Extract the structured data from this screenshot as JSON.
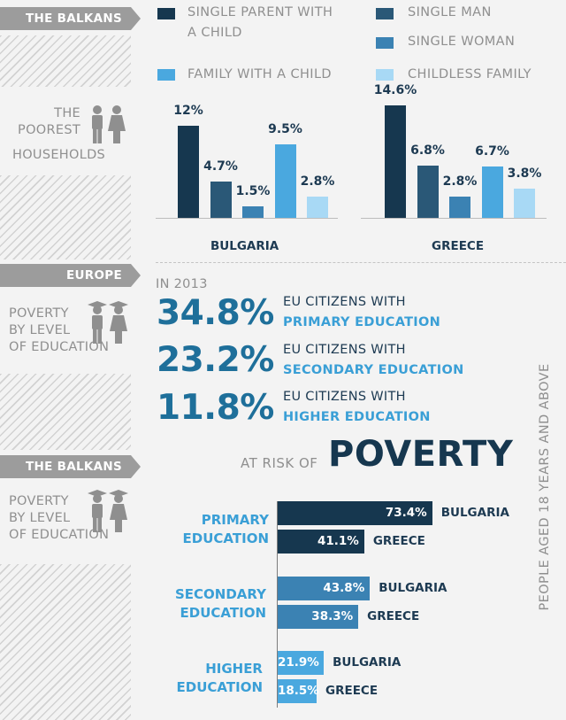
{
  "colors": {
    "single_parent": "#16374f",
    "single_man": "#2a5877",
    "single_woman": "#3b82b3",
    "family_with_child": "#4aa8df",
    "childless_family": "#a8d9f5",
    "accent_blue": "#1e6f9a",
    "tag_grey": "#9c9c9c"
  },
  "section1": {
    "tag": "THE BALKANS",
    "side_line1": "THE",
    "side_line2": "POOREST",
    "side_line3": "HOUSEHOLDS",
    "icon": "family-icon"
  },
  "legend": {
    "single_parent_l1": "SINGLE PARENT WITH",
    "single_parent_l2": "A CHILD",
    "single_man": "SINGLE MAN",
    "single_woman": "SINGLE WOMAN",
    "family_with_child": "FAMILY WITH A CHILD",
    "childless_family": "CHILDLESS FAMILY"
  },
  "section2": {
    "tag": "EUROPE",
    "side_line1": "POVERTY",
    "side_line2": "BY LEVEL",
    "side_line3": "OF EDUCATION",
    "year": "IN 2013",
    "icon": "graduates-icon",
    "rows": [
      {
        "pct": "34.8%",
        "line1": "EU CITIZENS WITH",
        "line2": "PRIMARY EDUCATION"
      },
      {
        "pct": "23.2%",
        "line1": "EU CITIZENS WITH",
        "line2": "SECONDARY EDUCATION"
      },
      {
        "pct": "11.8%",
        "line1": "EU CITIZENS WITH",
        "line2": "HIGHER EDUCATION"
      }
    ]
  },
  "section3": {
    "tag": "THE BALKANS",
    "side_line1": "POVERTY",
    "side_line2": "BY LEVEL",
    "side_line3": "OF EDUCATION",
    "icon": "graduates-icon",
    "risk_small": "AT RISK OF",
    "risk_big": "POVERTY",
    "vertical_note": "PEOPLE AGED 18 YEARS AND ABOVE",
    "cat_primary_l1": "PRIMARY",
    "cat_primary_l2": "EDUCATION",
    "cat_secondary_l1": "SECONDARY",
    "cat_secondary_l2": "EDUCATION",
    "cat_higher_l1": "HIGHER",
    "cat_higher_l2": "EDUCATION"
  },
  "chart_data": [
    {
      "type": "bar",
      "xlabel": "BULGARIA",
      "categories": [
        "SINGLE PARENT WITH A CHILD",
        "SINGLE MAN",
        "SINGLE WOMAN",
        "FAMILY WITH A CHILD",
        "CHILDLESS FAMILY"
      ],
      "values": [
        12,
        4.7,
        1.5,
        9.5,
        2.8
      ],
      "labels": [
        "12%",
        "4.7%",
        "1.5%",
        "9.5%",
        "2.8%"
      ]
    },
    {
      "type": "bar",
      "xlabel": "GREECE",
      "categories": [
        "SINGLE PARENT WITH A CHILD",
        "SINGLE MAN",
        "SINGLE WOMAN",
        "FAMILY WITH A CHILD",
        "CHILDLESS FAMILY"
      ],
      "values": [
        14.6,
        6.8,
        2.8,
        6.7,
        3.8
      ],
      "labels": [
        "14.6%",
        "6.8%",
        "2.8%",
        "6.7%",
        "3.8%"
      ]
    },
    {
      "type": "bar",
      "orientation": "horizontal",
      "categories": [
        "PRIMARY EDUCATION",
        "SECONDARY EDUCATION",
        "HIGHER EDUCATION"
      ],
      "series": [
        {
          "name": "BULGARIA",
          "values": [
            73.4,
            43.8,
            21.9
          ],
          "labels": [
            "73.4%",
            "43.8%",
            "21.9%"
          ]
        },
        {
          "name": "GREECE",
          "values": [
            41.1,
            38.3,
            18.5
          ],
          "labels": [
            "41.1%",
            "38.3%",
            "18.5%"
          ]
        }
      ],
      "bar_colors": [
        "#16374f",
        "#3b82b3",
        "#4aa8df"
      ]
    }
  ]
}
